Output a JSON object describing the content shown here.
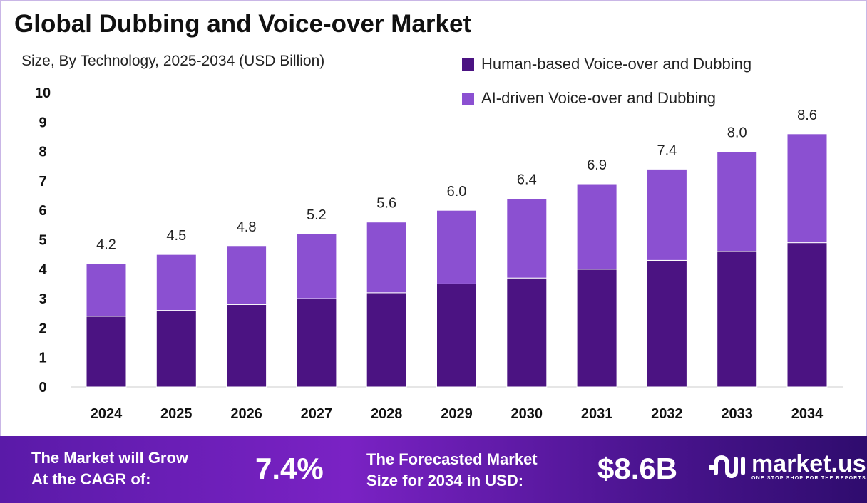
{
  "chart_data": {
    "type": "bar",
    "stacked": true,
    "title": "Global Dubbing and Voice-over Market",
    "subtitle": "Size, By Technology, 2025-2034 (USD Billion)",
    "categories": [
      "2024",
      "2025",
      "2026",
      "2027",
      "2028",
      "2029",
      "2030",
      "2031",
      "2032",
      "2033",
      "2034"
    ],
    "series": [
      {
        "name": "Human-based Voice-over and Dubbing",
        "color": "#4b1382",
        "values": [
          2.4,
          2.6,
          2.8,
          3.0,
          3.2,
          3.5,
          3.7,
          4.0,
          4.3,
          4.6,
          4.9
        ]
      },
      {
        "name": "AI-driven Voice-over and Dubbing",
        "color": "#8b50d1",
        "values": [
          1.8,
          1.9,
          2.0,
          2.2,
          2.4,
          2.5,
          2.7,
          2.9,
          3.1,
          3.4,
          3.7
        ]
      }
    ],
    "totals": [
      "4.2",
      "4.5",
      "4.8",
      "5.2",
      "5.6",
      "6.0",
      "6.4",
      "6.9",
      "7.4",
      "8.0",
      "8.6"
    ],
    "yticks": [
      "0",
      "1",
      "2",
      "3",
      "4",
      "5",
      "6",
      "7",
      "8",
      "9",
      "10"
    ],
    "ylim": [
      0,
      10
    ],
    "grid": false,
    "legend_position": "top-right"
  },
  "footer": {
    "cagr_label": [
      "The Market will Grow",
      "At the CAGR of:"
    ],
    "cagr_value": "7.4%",
    "forecast_label": [
      "The Forecasted Market",
      "Size for 2034 in USD:"
    ],
    "forecast_value": "$8.6B",
    "logo_name": "market.us",
    "logo_tagline": "ONE STOP SHOP FOR THE REPORTS"
  }
}
